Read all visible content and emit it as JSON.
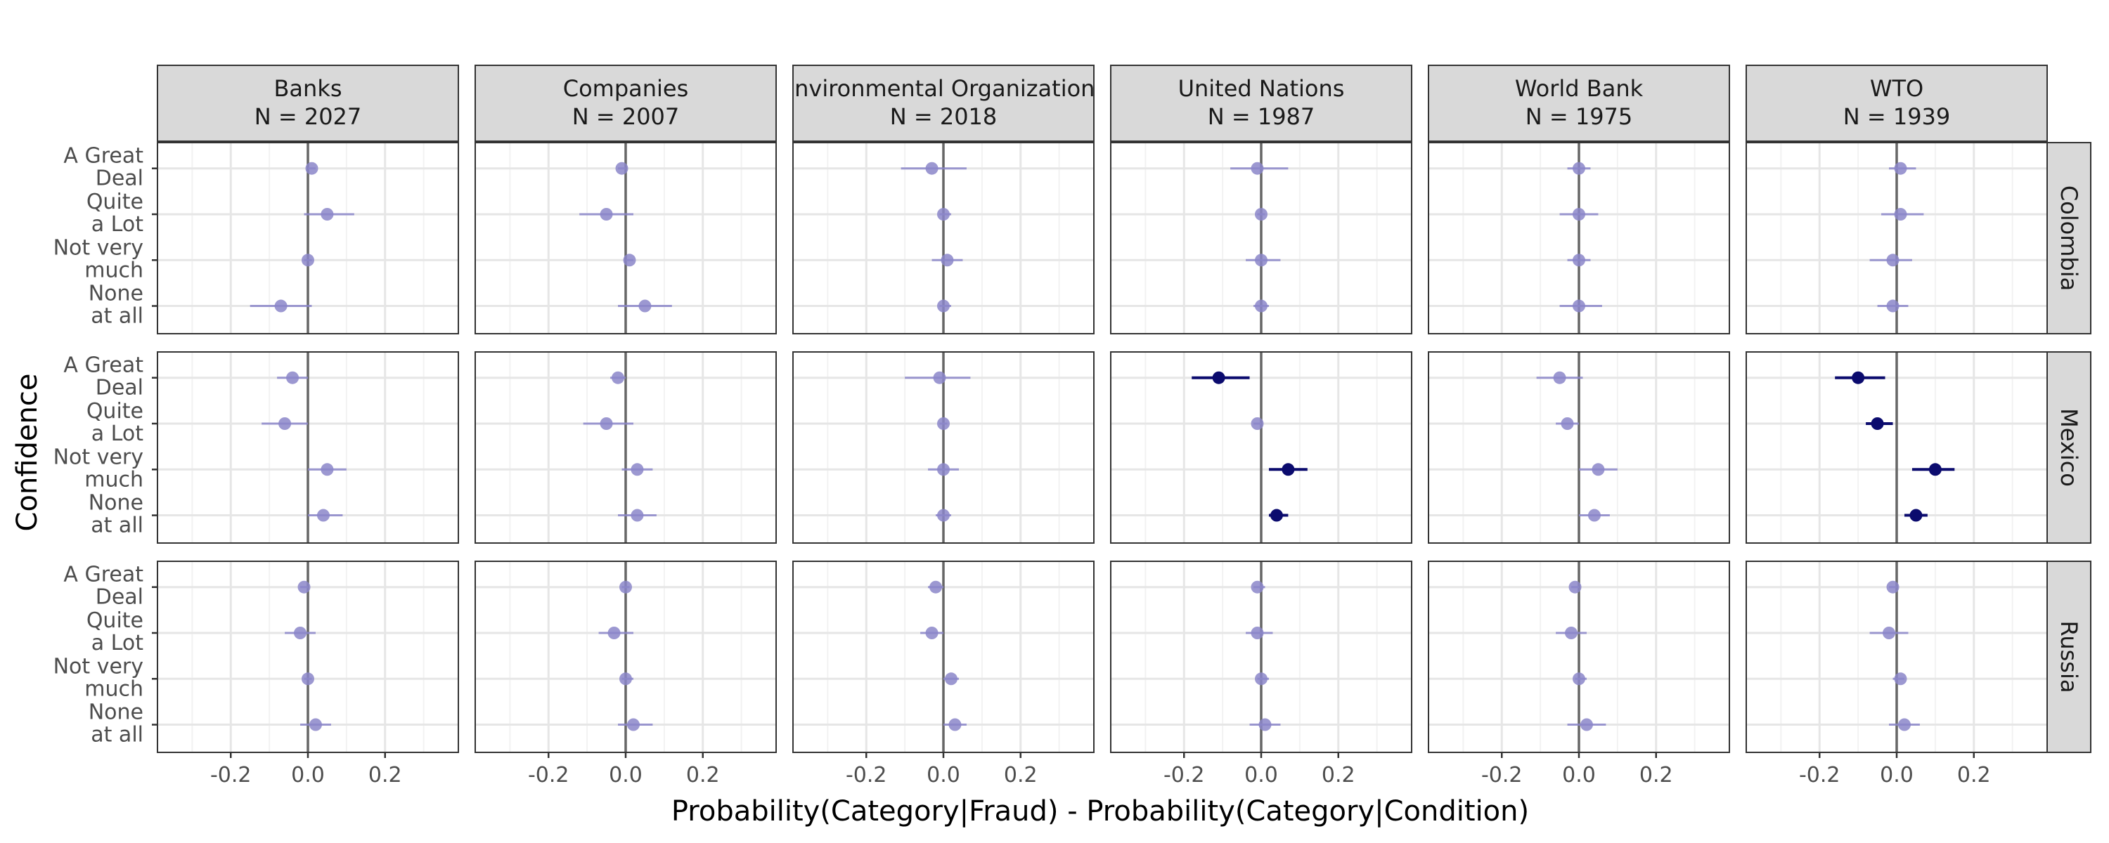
{
  "chart_data": {
    "type": "dot-whisker-facet",
    "xlabel": "Probability(Category|Fraud) - Probability(Category|Condition)",
    "ylabel": "Confidence",
    "x_ticks": [
      -0.2,
      0.0,
      0.2
    ],
    "x_tick_labels": [
      "-0.2",
      "0.0",
      "0.2"
    ],
    "xlim": [
      -0.39,
      0.39
    ],
    "y_categories": [
      {
        "line1": "A Great",
        "line2": "Deal"
      },
      {
        "line1": "Quite",
        "line2": "a Lot"
      },
      {
        "line1": "Not very",
        "line2": "much"
      },
      {
        "line1": "None",
        "line2": "at all"
      }
    ],
    "columns": [
      {
        "name": "Banks",
        "n": "N = 2027"
      },
      {
        "name": "Companies",
        "n": "N = 2007"
      },
      {
        "name": "Environmental Organizations",
        "n": "N = 2018"
      },
      {
        "name": "United Nations",
        "n": "N = 1987"
      },
      {
        "name": "World Bank",
        "n": "N = 1975"
      },
      {
        "name": "WTO",
        "n": "N = 1939"
      }
    ],
    "rows": [
      "Colombia",
      "Mexico",
      "Russia"
    ],
    "colors": {
      "significant": "#0b0b6e",
      "nonsignificant": "#8b86c9"
    },
    "panels": [
      [
        [
          {
            "est": 0.01,
            "lo": 0.0,
            "hi": 0.02,
            "sig": false
          },
          {
            "est": 0.05,
            "lo": -0.01,
            "hi": 0.12,
            "sig": false
          },
          {
            "est": 0.0,
            "lo": -0.01,
            "hi": 0.01,
            "sig": false
          },
          {
            "est": -0.07,
            "lo": -0.15,
            "hi": 0.01,
            "sig": false
          }
        ],
        [
          {
            "est": -0.01,
            "lo": -0.02,
            "hi": 0.0,
            "sig": false
          },
          {
            "est": -0.05,
            "lo": -0.12,
            "hi": 0.02,
            "sig": false
          },
          {
            "est": 0.01,
            "lo": 0.0,
            "hi": 0.02,
            "sig": false
          },
          {
            "est": 0.05,
            "lo": -0.02,
            "hi": 0.12,
            "sig": false
          }
        ],
        [
          {
            "est": -0.03,
            "lo": -0.11,
            "hi": 0.06,
            "sig": false
          },
          {
            "est": 0.0,
            "lo": -0.01,
            "hi": 0.02,
            "sig": false
          },
          {
            "est": 0.01,
            "lo": -0.03,
            "hi": 0.05,
            "sig": false
          },
          {
            "est": 0.0,
            "lo": -0.01,
            "hi": 0.02,
            "sig": false
          }
        ],
        [
          {
            "est": -0.01,
            "lo": -0.08,
            "hi": 0.07,
            "sig": false
          },
          {
            "est": 0.0,
            "lo": -0.01,
            "hi": 0.01,
            "sig": false
          },
          {
            "est": 0.0,
            "lo": -0.04,
            "hi": 0.05,
            "sig": false
          },
          {
            "est": 0.0,
            "lo": -0.02,
            "hi": 0.02,
            "sig": false
          }
        ],
        [
          {
            "est": 0.0,
            "lo": -0.03,
            "hi": 0.03,
            "sig": false
          },
          {
            "est": 0.0,
            "lo": -0.05,
            "hi": 0.05,
            "sig": false
          },
          {
            "est": 0.0,
            "lo": -0.03,
            "hi": 0.03,
            "sig": false
          },
          {
            "est": 0.0,
            "lo": -0.05,
            "hi": 0.06,
            "sig": false
          }
        ],
        [
          {
            "est": 0.01,
            "lo": -0.02,
            "hi": 0.05,
            "sig": false
          },
          {
            "est": 0.01,
            "lo": -0.04,
            "hi": 0.07,
            "sig": false
          },
          {
            "est": -0.01,
            "lo": -0.07,
            "hi": 0.04,
            "sig": false
          },
          {
            "est": -0.01,
            "lo": -0.05,
            "hi": 0.03,
            "sig": false
          }
        ]
      ],
      [
        [
          {
            "est": -0.04,
            "lo": -0.08,
            "hi": 0.0,
            "sig": false
          },
          {
            "est": -0.06,
            "lo": -0.12,
            "hi": 0.0,
            "sig": false
          },
          {
            "est": 0.05,
            "lo": 0.0,
            "hi": 0.1,
            "sig": false
          },
          {
            "est": 0.04,
            "lo": 0.0,
            "hi": 0.09,
            "sig": false
          }
        ],
        [
          {
            "est": -0.02,
            "lo": -0.04,
            "hi": 0.0,
            "sig": false
          },
          {
            "est": -0.05,
            "lo": -0.11,
            "hi": 0.02,
            "sig": false
          },
          {
            "est": 0.03,
            "lo": -0.01,
            "hi": 0.07,
            "sig": false
          },
          {
            "est": 0.03,
            "lo": -0.02,
            "hi": 0.08,
            "sig": false
          }
        ],
        [
          {
            "est": -0.01,
            "lo": -0.1,
            "hi": 0.07,
            "sig": false
          },
          {
            "est": 0.0,
            "lo": -0.01,
            "hi": 0.01,
            "sig": false
          },
          {
            "est": 0.0,
            "lo": -0.04,
            "hi": 0.04,
            "sig": false
          },
          {
            "est": 0.0,
            "lo": -0.02,
            "hi": 0.02,
            "sig": false
          }
        ],
        [
          {
            "est": -0.11,
            "lo": -0.18,
            "hi": -0.03,
            "sig": true
          },
          {
            "est": -0.01,
            "lo": -0.02,
            "hi": 0.0,
            "sig": false
          },
          {
            "est": 0.07,
            "lo": 0.02,
            "hi": 0.12,
            "sig": true
          },
          {
            "est": 0.04,
            "lo": 0.02,
            "hi": 0.07,
            "sig": true
          }
        ],
        [
          {
            "est": -0.05,
            "lo": -0.11,
            "hi": 0.01,
            "sig": false
          },
          {
            "est": -0.03,
            "lo": -0.06,
            "hi": 0.0,
            "sig": false
          },
          {
            "est": 0.05,
            "lo": 0.0,
            "hi": 0.1,
            "sig": false
          },
          {
            "est": 0.04,
            "lo": 0.0,
            "hi": 0.08,
            "sig": false
          }
        ],
        [
          {
            "est": -0.1,
            "lo": -0.16,
            "hi": -0.03,
            "sig": true
          },
          {
            "est": -0.05,
            "lo": -0.08,
            "hi": -0.01,
            "sig": true
          },
          {
            "est": 0.1,
            "lo": 0.04,
            "hi": 0.15,
            "sig": true
          },
          {
            "est": 0.05,
            "lo": 0.02,
            "hi": 0.08,
            "sig": true
          }
        ]
      ],
      [
        [
          {
            "est": -0.01,
            "lo": -0.02,
            "hi": 0.0,
            "sig": false
          },
          {
            "est": -0.02,
            "lo": -0.06,
            "hi": 0.02,
            "sig": false
          },
          {
            "est": 0.0,
            "lo": -0.01,
            "hi": 0.01,
            "sig": false
          },
          {
            "est": 0.02,
            "lo": -0.02,
            "hi": 0.06,
            "sig": false
          }
        ],
        [
          {
            "est": 0.0,
            "lo": -0.01,
            "hi": 0.01,
            "sig": false
          },
          {
            "est": -0.03,
            "lo": -0.07,
            "hi": 0.02,
            "sig": false
          },
          {
            "est": 0.0,
            "lo": -0.01,
            "hi": 0.02,
            "sig": false
          },
          {
            "est": 0.02,
            "lo": -0.02,
            "hi": 0.07,
            "sig": false
          }
        ],
        [
          {
            "est": -0.02,
            "lo": -0.04,
            "hi": 0.0,
            "sig": false
          },
          {
            "est": -0.03,
            "lo": -0.06,
            "hi": 0.0,
            "sig": false
          },
          {
            "est": 0.02,
            "lo": 0.0,
            "hi": 0.04,
            "sig": false
          },
          {
            "est": 0.03,
            "lo": 0.0,
            "hi": 0.06,
            "sig": false
          }
        ],
        [
          {
            "est": -0.01,
            "lo": -0.02,
            "hi": 0.01,
            "sig": false
          },
          {
            "est": -0.01,
            "lo": -0.04,
            "hi": 0.03,
            "sig": false
          },
          {
            "est": 0.0,
            "lo": -0.01,
            "hi": 0.02,
            "sig": false
          },
          {
            "est": 0.01,
            "lo": -0.03,
            "hi": 0.05,
            "sig": false
          }
        ],
        [
          {
            "est": -0.01,
            "lo": -0.02,
            "hi": 0.0,
            "sig": false
          },
          {
            "est": -0.02,
            "lo": -0.06,
            "hi": 0.02,
            "sig": false
          },
          {
            "est": 0.0,
            "lo": -0.01,
            "hi": 0.02,
            "sig": false
          },
          {
            "est": 0.02,
            "lo": -0.03,
            "hi": 0.07,
            "sig": false
          }
        ],
        [
          {
            "est": -0.01,
            "lo": -0.02,
            "hi": 0.0,
            "sig": false
          },
          {
            "est": -0.02,
            "lo": -0.07,
            "hi": 0.03,
            "sig": false
          },
          {
            "est": 0.01,
            "lo": -0.01,
            "hi": 0.02,
            "sig": false
          },
          {
            "est": 0.02,
            "lo": -0.02,
            "hi": 0.06,
            "sig": false
          }
        ]
      ]
    ]
  }
}
